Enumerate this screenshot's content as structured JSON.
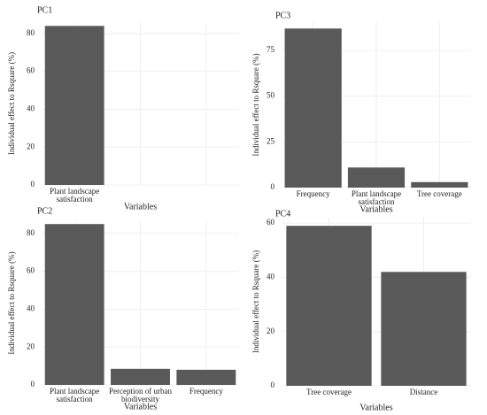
{
  "chart_data": [
    {
      "type": "bar",
      "title": "PC1",
      "xlabel": "Variables",
      "ylabel": "Individual effect to Rsquare (%)",
      "categories": [
        "Plant landscape satisfaction",
        null,
        null
      ],
      "values": [
        84,
        null,
        null
      ],
      "color": "#595959",
      "ylim": [
        0,
        86
      ],
      "yticks": [
        0,
        20,
        40,
        60,
        80
      ],
      "grid": true
    },
    {
      "type": "bar",
      "title": "PC3",
      "xlabel": "Variables",
      "ylabel": "Individual effect to Rsquare (%)",
      "categories": [
        "Frequency",
        "Plant landscape satisfaction",
        "Tree coverage"
      ],
      "values": [
        87,
        11,
        3
      ],
      "color": "#595959",
      "ylim": [
        0,
        90.5
      ],
      "yticks": [
        0,
        25,
        50,
        75
      ],
      "grid": true
    },
    {
      "type": "bar",
      "title": "PC2",
      "xlabel": "Variables",
      "ylabel": "Individual effect to Rsquare (%)",
      "categories": [
        "Plant landscape satisfaction",
        "Perception of urban biodiversity",
        "Frequency"
      ],
      "values": [
        85,
        8.5,
        8
      ],
      "color": "#595959",
      "ylim": [
        0,
        86.5
      ],
      "yticks": [
        0,
        20,
        40,
        60,
        80
      ],
      "grid": true
    },
    {
      "type": "bar",
      "title": "PC4",
      "xlabel": "Variables",
      "ylabel": "Individual effect to Rsquare (%)",
      "categories": [
        "Tree coverage",
        "Distance"
      ],
      "values": [
        59,
        42
      ],
      "color": "#595959",
      "ylim": [
        0,
        62
      ],
      "yticks": [
        0,
        20,
        40,
        60
      ],
      "grid": true
    }
  ]
}
